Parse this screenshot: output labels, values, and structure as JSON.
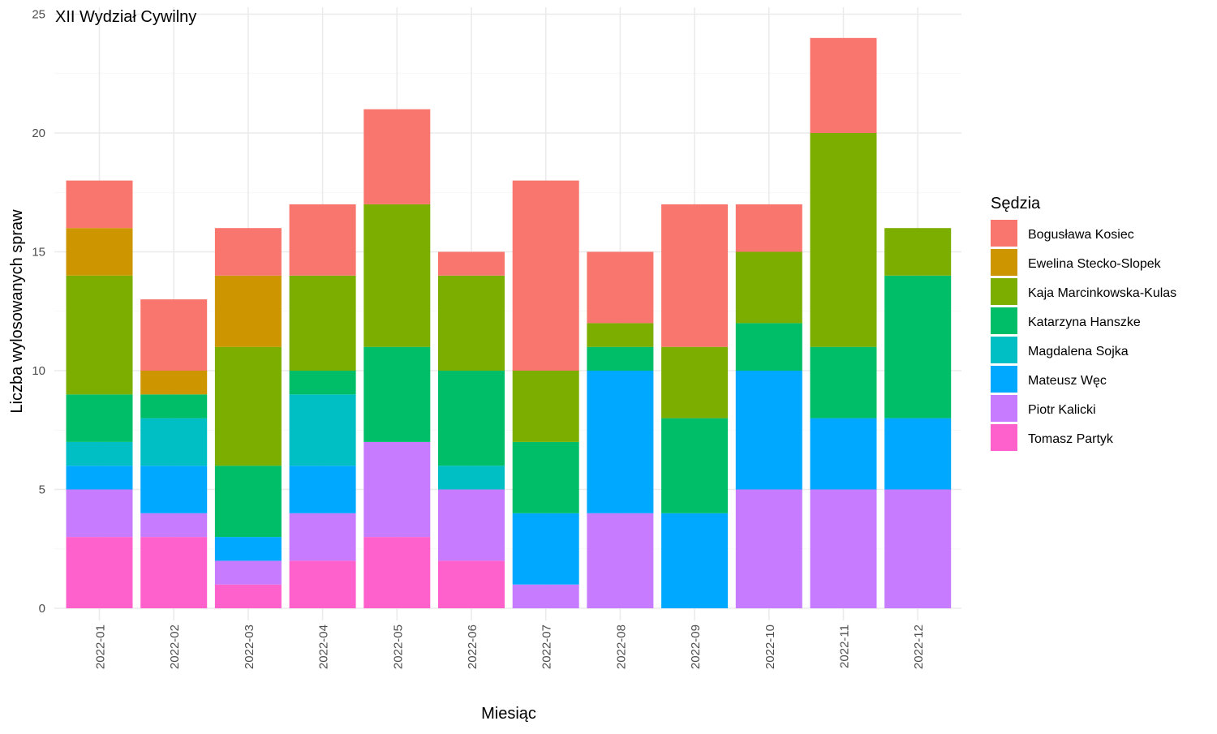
{
  "chart_data": {
    "type": "bar",
    "stacked": true,
    "panel_title": "XII Wydział Cywilny",
    "xlabel": "Miesiąc",
    "ylabel": "Liczba wylosowanych spraw",
    "ylim": [
      0,
      25
    ],
    "yticks": [
      "0",
      "5",
      "10",
      "15",
      "20",
      "25"
    ],
    "grid": true,
    "legend": {
      "title": "Sędzia",
      "position": "right"
    },
    "categories": [
      "2022-01",
      "2022-02",
      "2022-03",
      "2022-04",
      "2022-05",
      "2022-06",
      "2022-07",
      "2022-08",
      "2022-09",
      "2022-10",
      "2022-11",
      "2022-12"
    ],
    "series": [
      {
        "name": "Bogusława Kosiec",
        "color": "#F8766D",
        "values": [
          2,
          3,
          2,
          3,
          4,
          1,
          8,
          3,
          6,
          2,
          4,
          0
        ]
      },
      {
        "name": "Ewelina Stecko-Slopek",
        "color": "#CD9600",
        "values": [
          2,
          1,
          3,
          0,
          0,
          0,
          0,
          0,
          0,
          0,
          0,
          0
        ]
      },
      {
        "name": "Kaja Marcinkowska-Kulas",
        "color": "#7CAE00",
        "values": [
          5,
          0,
          5,
          4,
          6,
          4,
          3,
          1,
          3,
          3,
          9,
          2
        ]
      },
      {
        "name": "Katarzyna Hanszke",
        "color": "#00BE67",
        "values": [
          2,
          1,
          3,
          1,
          4,
          4,
          3,
          1,
          4,
          2,
          3,
          6
        ]
      },
      {
        "name": "Magdalena Sojka",
        "color": "#00BFC4",
        "values": [
          1,
          2,
          0,
          3,
          0,
          1,
          0,
          0,
          0,
          0,
          0,
          0
        ]
      },
      {
        "name": "Mateusz Węc",
        "color": "#00A9FF",
        "values": [
          1,
          2,
          1,
          2,
          0,
          0,
          3,
          6,
          4,
          5,
          3,
          3
        ]
      },
      {
        "name": "Piotr Kalicki",
        "color": "#C77CFF",
        "values": [
          2,
          1,
          1,
          2,
          4,
          3,
          1,
          4,
          0,
          5,
          5,
          5
        ]
      },
      {
        "name": "Tomasz Partyk",
        "color": "#FF61CC",
        "values": [
          3,
          3,
          1,
          2,
          3,
          2,
          0,
          0,
          0,
          0,
          0,
          0
        ]
      }
    ]
  }
}
